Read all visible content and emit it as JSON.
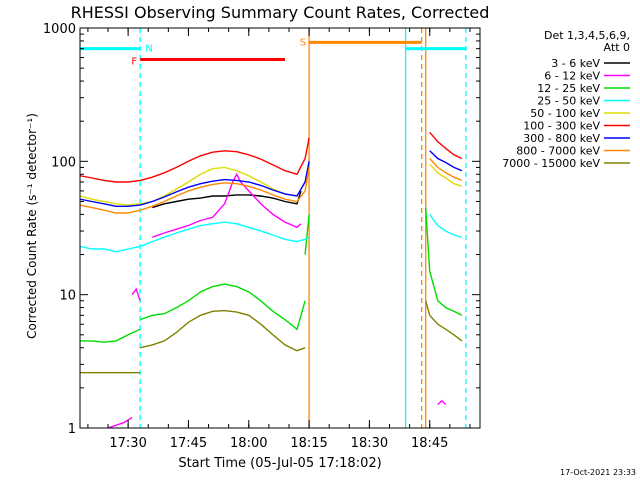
{
  "chart_data": {
    "type": "line",
    "title": "RHESSI Observing Summary Count Rates, Corrected",
    "xlabel": "Start Time (05-Jul-05 17:18:02)",
    "ylabel": "Corrected Count Rate (s⁻¹ detector⁻¹)",
    "yscale": "log",
    "ylim": [
      1,
      1000
    ],
    "xlim": [
      "17:18:02",
      "18:57:30"
    ],
    "x_ticks": [
      "17:30",
      "17:45",
      "18:00",
      "18:15",
      "18:30",
      "18:45"
    ],
    "y_ticks": [
      "1",
      "10",
      "100",
      "1000"
    ],
    "grid": false,
    "legend_header": [
      "Det 1,3,4,5,6,9,",
      "Att 0"
    ],
    "legend_position": "right",
    "series": [
      {
        "name": "3 - 6 keV",
        "color": "#000000",
        "segments": [
          {
            "x": [
              "17:36",
              "17:39",
              "17:42",
              "17:45",
              "17:48",
              "17:51",
              "17:54",
              "17:57",
              "18:00",
              "18:03",
              "18:06",
              "18:09",
              "18:12",
              "18:13"
            ],
            "y": [
              45,
              48,
              50,
              52,
              53,
              55,
              55,
              56,
              56,
              55,
              53,
              50,
              48,
              60
            ]
          }
        ]
      },
      {
        "name": "6 - 12 keV",
        "color": "#ff00ff",
        "segments": [
          {
            "x": [
              "17:25",
              "17:29",
              "17:31"
            ],
            "y": [
              1.0,
              1.1,
              1.2
            ]
          },
          {
            "x": [
              "17:31",
              "17:32",
              "17:33"
            ],
            "y": [
              10,
              11,
              9
            ]
          },
          {
            "x": [
              "17:36",
              "17:39",
              "17:42",
              "17:45",
              "17:48",
              "17:51",
              "17:54",
              "17:56",
              "17:57",
              "17:58",
              "18:00",
              "18:03",
              "18:06",
              "18:09",
              "18:12",
              "18:13"
            ],
            "y": [
              27,
              29,
              31,
              33,
              36,
              38,
              48,
              70,
              80,
              70,
              60,
              48,
              40,
              35,
              32,
              34
            ]
          },
          {
            "x": [
              "18:47",
              "18:48",
              "18:49"
            ],
            "y": [
              1.5,
              1.6,
              1.5
            ]
          }
        ]
      },
      {
        "name": "12 - 25 keV",
        "color": "#00dd00",
        "segments": [
          {
            "x": [
              "17:18",
              "17:21",
              "17:24",
              "17:27",
              "17:30",
              "17:33"
            ],
            "y": [
              4.5,
              4.5,
              4.4,
              4.5,
              5.0,
              5.5
            ]
          },
          {
            "x": [
              "17:33",
              "17:36",
              "17:39",
              "17:42",
              "17:45",
              "17:48",
              "17:51",
              "17:54",
              "17:57",
              "18:00",
              "18:03",
              "18:06",
              "18:09",
              "18:12",
              "18:13",
              "18:14"
            ],
            "y": [
              6.5,
              7.0,
              7.2,
              8.0,
              9.0,
              10.5,
              11.5,
              12,
              11.5,
              10.5,
              9.0,
              7.5,
              6.5,
              5.5,
              7,
              9
            ]
          },
          {
            "x": [
              "18:14",
              "18:15"
            ],
            "y": [
              20,
              40
            ]
          },
          {
            "x": [
              "18:44",
              "18:45",
              "18:47",
              "18:49",
              "18:51",
              "18:53"
            ],
            "y": [
              45,
              15,
              9,
              8,
              7.5,
              7
            ]
          }
        ]
      },
      {
        "name": "25 - 50 keV",
        "color": "#00ffff",
        "segments": [
          {
            "x": [
              "17:18",
              "17:21",
              "17:24",
              "17:27",
              "17:30",
              "17:33",
              "17:36",
              "17:39",
              "17:42",
              "17:45",
              "17:48",
              "17:51",
              "17:54",
              "17:57",
              "18:00",
              "18:03",
              "18:06",
              "18:09",
              "18:12",
              "18:14",
              "18:15"
            ],
            "y": [
              23,
              22,
              22,
              21,
              22,
              23,
              25,
              27,
              29,
              31,
              33,
              34,
              35,
              34,
              32,
              30,
              28,
              26,
              25,
              26,
              27
            ]
          },
          {
            "x": [
              "18:45",
              "18:47",
              "18:49",
              "18:51",
              "18:53"
            ],
            "y": [
              40,
              33,
              30,
              28,
              27
            ]
          }
        ]
      },
      {
        "name": "50 - 100 keV",
        "color": "#dddd00",
        "segments": [
          {
            "x": [
              "17:18",
              "17:21",
              "17:24",
              "17:27",
              "17:30",
              "17:33",
              "17:36",
              "17:39",
              "17:42",
              "17:45",
              "17:48",
              "17:51",
              "17:54",
              "17:57",
              "18:00",
              "18:03",
              "18:06",
              "18:09",
              "18:12",
              "18:14",
              "18:15"
            ],
            "y": [
              55,
              52,
              50,
              48,
              47,
              48,
              50,
              55,
              62,
              70,
              80,
              88,
              90,
              85,
              78,
              70,
              62,
              57,
              55,
              70,
              90
            ]
          },
          {
            "x": [
              "18:45",
              "18:47",
              "18:49",
              "18:51",
              "18:53"
            ],
            "y": [
              95,
              82,
              75,
              68,
              65
            ]
          }
        ]
      },
      {
        "name": "100 - 300 keV",
        "color": "#ff0000",
        "segments": [
          {
            "x": [
              "17:18",
              "17:21",
              "17:24",
              "17:27",
              "17:30",
              "17:33",
              "17:36",
              "17:39",
              "17:42",
              "17:45",
              "17:48",
              "17:51",
              "17:54",
              "17:57",
              "18:00",
              "18:03",
              "18:06",
              "18:09",
              "18:12",
              "18:14",
              "18:15"
            ],
            "y": [
              78,
              75,
              72,
              70,
              70,
              72,
              76,
              82,
              90,
              100,
              110,
              117,
              120,
              118,
              112,
              104,
              94,
              85,
              80,
              105,
              150
            ]
          },
          {
            "x": [
              "18:45",
              "18:47",
              "18:49",
              "18:51",
              "18:53"
            ],
            "y": [
              165,
              140,
              125,
              112,
              105
            ]
          }
        ]
      },
      {
        "name": "300 - 800 keV",
        "color": "#0000ff",
        "segments": [
          {
            "x": [
              "17:18",
              "17:21",
              "17:24",
              "17:27",
              "17:30",
              "17:33",
              "17:36",
              "17:39",
              "17:42",
              "17:45",
              "17:48",
              "17:51",
              "17:54",
              "17:57",
              "18:00",
              "18:03",
              "18:06",
              "18:09",
              "18:12",
              "18:14",
              "18:15"
            ],
            "y": [
              52,
              50,
              48,
              46,
              46,
              47,
              50,
              54,
              59,
              64,
              68,
              71,
              73,
              72,
              70,
              66,
              61,
              57,
              55,
              70,
              100
            ]
          },
          {
            "x": [
              "18:45",
              "18:47",
              "18:49",
              "18:51",
              "18:53"
            ],
            "y": [
              120,
              105,
              98,
              90,
              85
            ]
          }
        ]
      },
      {
        "name": "800 - 7000 keV",
        "color": "#ff8800",
        "segments": [
          {
            "x": [
              "17:18",
              "17:21",
              "17:24",
              "17:27",
              "17:30",
              "17:33",
              "17:36",
              "17:39",
              "17:42",
              "17:45",
              "17:48",
              "17:51",
              "17:54",
              "17:57",
              "18:00",
              "18:03",
              "18:06",
              "18:09",
              "18:12",
              "18:14",
              "18:15"
            ],
            "y": [
              47,
              45,
              43,
              41,
              41,
              43,
              46,
              50,
              55,
              60,
              64,
              67,
              69,
              68,
              65,
              61,
              56,
              52,
              50,
              60,
              90
            ]
          },
          {
            "x": [
              "18:45",
              "18:47",
              "18:49",
              "18:51",
              "18:53"
            ],
            "y": [
              105,
              90,
              82,
              76,
              72
            ]
          }
        ]
      },
      {
        "name": "7000 - 15000 keV",
        "color": "#808000",
        "segments": [
          {
            "x": [
              "17:18",
              "17:21",
              "17:24",
              "17:27",
              "17:30",
              "17:33"
            ],
            "y": [
              2.6,
              2.6,
              2.6,
              2.6,
              2.6,
              2.6
            ]
          },
          {
            "x": [
              "17:33",
              "17:36",
              "17:39",
              "17:42",
              "17:45",
              "17:48",
              "17:51",
              "17:54",
              "17:57",
              "18:00",
              "18:03",
              "18:06",
              "18:09",
              "18:12",
              "18:14"
            ],
            "y": [
              4.0,
              4.2,
              4.5,
              5.2,
              6.2,
              7.0,
              7.5,
              7.6,
              7.4,
              7.0,
              6.0,
              5.0,
              4.2,
              3.8,
              4.0
            ]
          },
          {
            "x": [
              "18:44",
              "18:45",
              "18:47",
              "18:49",
              "18:51",
              "18:53"
            ],
            "y": [
              9,
              7,
              6,
              5.5,
              5,
              4.5
            ]
          }
        ]
      }
    ],
    "markers": [
      {
        "label": "N",
        "color": "#00ffff",
        "y": 700,
        "x_start": "17:18",
        "x_end": "17:33"
      },
      {
        "label": "",
        "color": "#00ffff",
        "y": 700,
        "x_start": "18:39",
        "x_end": "18:54"
      },
      {
        "label": "F",
        "color": "#ff0000",
        "y": 580,
        "x_start": "17:33",
        "x_end": "18:09"
      },
      {
        "label": "S",
        "color": "#ff8800",
        "y": 780,
        "x_start": "18:15",
        "x_end": "18:43"
      }
    ],
    "vlines": [
      {
        "x": "17:18",
        "color": "#00ffff",
        "style": "solid"
      },
      {
        "x": "17:33",
        "color": "#00ffff",
        "style": "dashed"
      },
      {
        "x": "18:15",
        "color": "#ff8800",
        "style": "solid"
      },
      {
        "x": "18:39",
        "color": "#00ffff",
        "style": "solid"
      },
      {
        "x": "18:43",
        "color": "#ff8800",
        "style": "dashed"
      },
      {
        "x": "18:44",
        "color": "#ff8800",
        "style": "solid"
      },
      {
        "x": "18:54",
        "color": "#00ffff",
        "style": "dashed"
      }
    ]
  },
  "footer": {
    "timestamp": "17-Oct-2021 23:33"
  }
}
